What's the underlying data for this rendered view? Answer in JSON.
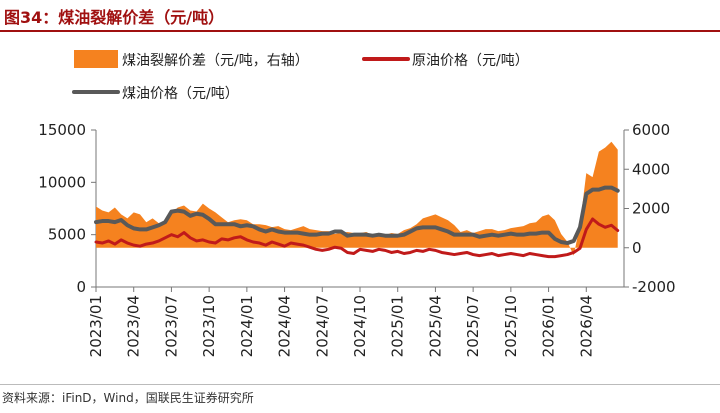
{
  "figure_title": "图34：煤油裂解价差（元/吨）",
  "source_note": "资料来源：iFinD，Wind，国联民生证券研究所",
  "colors": {
    "spread": "#f5821f",
    "crude": "#c01a1a",
    "kerosene": "#595959",
    "title": "#a01010"
  },
  "chart_data": {
    "type": "area",
    "title": "",
    "xlabel": "",
    "ylabel_left": "",
    "ylabel_right": "",
    "x_ticks": [
      "2023/01",
      "2023/04",
      "2023/07",
      "2023/10",
      "2024/01",
      "2024/04",
      "2024/07",
      "2024/10",
      "2025/01",
      "2025/04",
      "2025/07",
      "2025/10",
      "2026/01",
      "2026/04"
    ],
    "left_axis": {
      "ylim": [
        0,
        15000
      ],
      "ticks": [
        "15000",
        "10000",
        "5000",
        "0"
      ]
    },
    "right_axis": {
      "ylim": [
        -2000,
        6000
      ],
      "ticks": [
        "6000",
        "4000",
        "2000",
        "0",
        "-2000"
      ]
    },
    "legend": {
      "spread": "煤油裂解价差（元/吨，右轴）",
      "crude": "原油价格（元/吨）",
      "kerosene": "煤油价格（元/吨）"
    },
    "x_months": [
      0,
      0.5,
      1,
      1.5,
      2,
      2.5,
      3,
      3.5,
      4,
      4.5,
      5,
      5.5,
      6,
      6.5,
      7,
      7.5,
      8,
      8.5,
      9,
      9.5,
      10,
      10.5,
      11,
      11.5,
      12,
      12.5,
      13,
      13.5,
      14,
      14.5,
      15,
      15.5,
      16,
      16.5,
      17,
      17.5,
      18,
      18.5,
      19,
      19.5,
      20,
      20.5,
      21,
      21.5,
      22,
      22.5,
      23,
      23.5,
      24,
      24.5,
      25,
      25.5,
      26,
      26.5,
      27,
      27.5,
      28,
      28.5,
      29,
      29.5,
      30,
      30.5,
      31,
      31.5,
      32,
      32.5,
      33,
      33.5,
      34,
      34.5,
      35,
      35.5,
      36,
      36.5,
      37,
      37.5,
      38,
      38.5,
      39,
      39.5,
      40,
      40.5,
      41,
      41.5
    ],
    "series": [
      {
        "key": "spread",
        "axis": "right",
        "values": [
          2100,
          1900,
          1800,
          2050,
          1700,
          1500,
          1800,
          1700,
          1300,
          1500,
          1250,
          1300,
          1750,
          2050,
          2150,
          1900,
          1850,
          2250,
          2000,
          1800,
          1550,
          1300,
          1400,
          1450,
          1400,
          1200,
          1200,
          1150,
          1050,
          1100,
          950,
          900,
          1000,
          1100,
          950,
          900,
          850,
          850,
          700,
          750,
          800,
          750,
          750,
          800,
          650,
          700,
          650,
          750,
          700,
          900,
          1000,
          1200,
          1500,
          1600,
          1700,
          1550,
          1400,
          1150,
          800,
          900,
          750,
          850,
          950,
          950,
          850,
          900,
          1000,
          1050,
          1100,
          1250,
          1300,
          1600,
          1700,
          1400,
          700,
          300,
          -400,
          1200,
          3800,
          3600,
          4900,
          5100,
          5400,
          5000
        ]
      },
      {
        "key": "crude",
        "axis": "left",
        "values": [
          4300,
          4200,
          4400,
          4100,
          4500,
          4200,
          4000,
          3900,
          4100,
          4200,
          4400,
          4700,
          5000,
          4800,
          5200,
          4700,
          4400,
          4500,
          4300,
          4200,
          4600,
          4500,
          4700,
          4800,
          4500,
          4300,
          4200,
          4000,
          4300,
          4100,
          3900,
          4200,
          4100,
          4000,
          3800,
          3600,
          3500,
          3600,
          3800,
          3700,
          3300,
          3200,
          3600,
          3500,
          3400,
          3600,
          3500,
          3300,
          3400,
          3200,
          3300,
          3500,
          3400,
          3600,
          3500,
          3300,
          3200,
          3100,
          3200,
          3300,
          3100,
          3000,
          3100,
          3200,
          3000,
          3100,
          3200,
          3100,
          3000,
          3200,
          3100,
          3000,
          2900,
          2900,
          3000,
          3100,
          3300,
          3700,
          5500,
          6500,
          6000,
          5700,
          5900,
          5400
        ]
      },
      {
        "key": "kerosene",
        "axis": "left",
        "values": [
          6200,
          6300,
          6300,
          6200,
          6400,
          5900,
          5600,
          5500,
          5500,
          5700,
          5900,
          6200,
          7200,
          7300,
          7200,
          6800,
          7000,
          6900,
          6500,
          6000,
          6000,
          6000,
          6000,
          5800,
          5900,
          5800,
          5500,
          5300,
          5500,
          5300,
          5200,
          5200,
          5200,
          5100,
          5000,
          5000,
          5100,
          5100,
          5300,
          5300,
          4900,
          5000,
          5000,
          5000,
          4900,
          5000,
          4900,
          4900,
          4900,
          5000,
          5300,
          5600,
          5700,
          5700,
          5700,
          5500,
          5300,
          5000,
          5000,
          5000,
          5000,
          4800,
          4900,
          5000,
          4900,
          5000,
          5100,
          5000,
          5000,
          5100,
          5100,
          5200,
          5200,
          4600,
          4300,
          4200,
          4400,
          5700,
          8900,
          9300,
          9300,
          9500,
          9500,
          9200
        ]
      }
    ]
  }
}
